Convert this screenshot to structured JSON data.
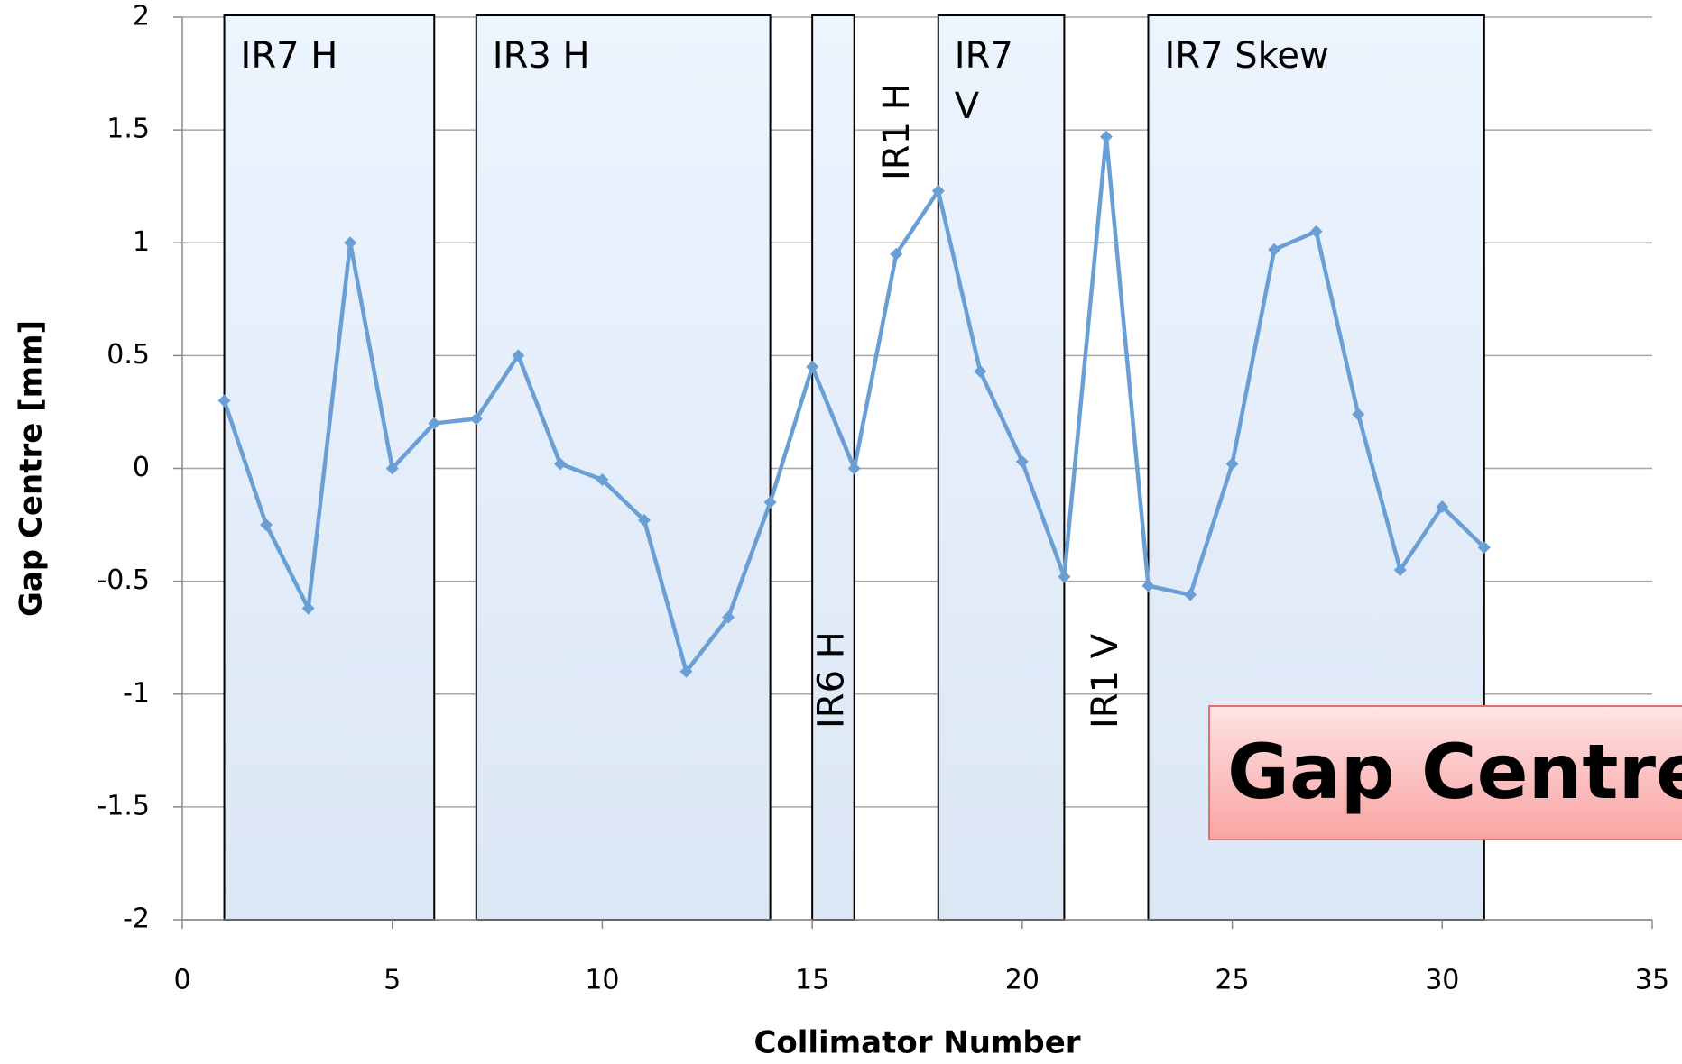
{
  "chart_data": {
    "type": "line",
    "x_label": "Collimator Number",
    "y_label": "Gap Centre [mm]",
    "x": [
      1,
      2,
      3,
      4,
      5,
      6,
      7,
      8,
      9,
      10,
      11,
      12,
      13,
      14,
      15,
      16,
      17,
      18,
      19,
      20,
      21,
      22,
      23,
      24,
      25,
      26,
      27,
      28,
      29,
      30,
      31
    ],
    "series": [
      {
        "name": "Gap Centre",
        "color": "#6a9fd6",
        "values": [
          0.3,
          -0.25,
          -0.62,
          1.0,
          0.0,
          0.2,
          0.22,
          0.5,
          0.02,
          -0.05,
          -0.23,
          -0.9,
          -0.66,
          -0.15,
          0.45,
          0.0,
          0.95,
          1.23,
          0.43,
          0.03,
          -0.48,
          1.47,
          -0.52,
          -0.56,
          0.02,
          0.97,
          1.05,
          0.24,
          -0.45,
          -0.17,
          -0.35
        ]
      }
    ],
    "xlim": [
      0,
      35
    ],
    "xticks": [
      0,
      5,
      10,
      15,
      20,
      25,
      30,
      35
    ],
    "ylim": [
      -2,
      2
    ],
    "yticks": [
      -2,
      -1.5,
      -1,
      -0.5,
      0,
      0.5,
      1,
      1.5,
      2
    ],
    "grid": true,
    "regions": [
      {
        "label": [
          "IR7 H"
        ],
        "start": 1,
        "end": 6
      },
      {
        "label": [
          "IR3 H"
        ],
        "start": 7,
        "end": 14
      },
      {
        "label": [
          "IR6 H"
        ],
        "start": 15,
        "end": 16,
        "vertical": true
      },
      {
        "label": [
          "IR7",
          "V"
        ],
        "start": 18,
        "end": 21
      },
      {
        "label": [
          "IR7 Skew"
        ],
        "start": 23,
        "end": 31
      }
    ],
    "annotations": [
      "IR1 H",
      "IR1 V"
    ],
    "note": "Gap Centre"
  }
}
